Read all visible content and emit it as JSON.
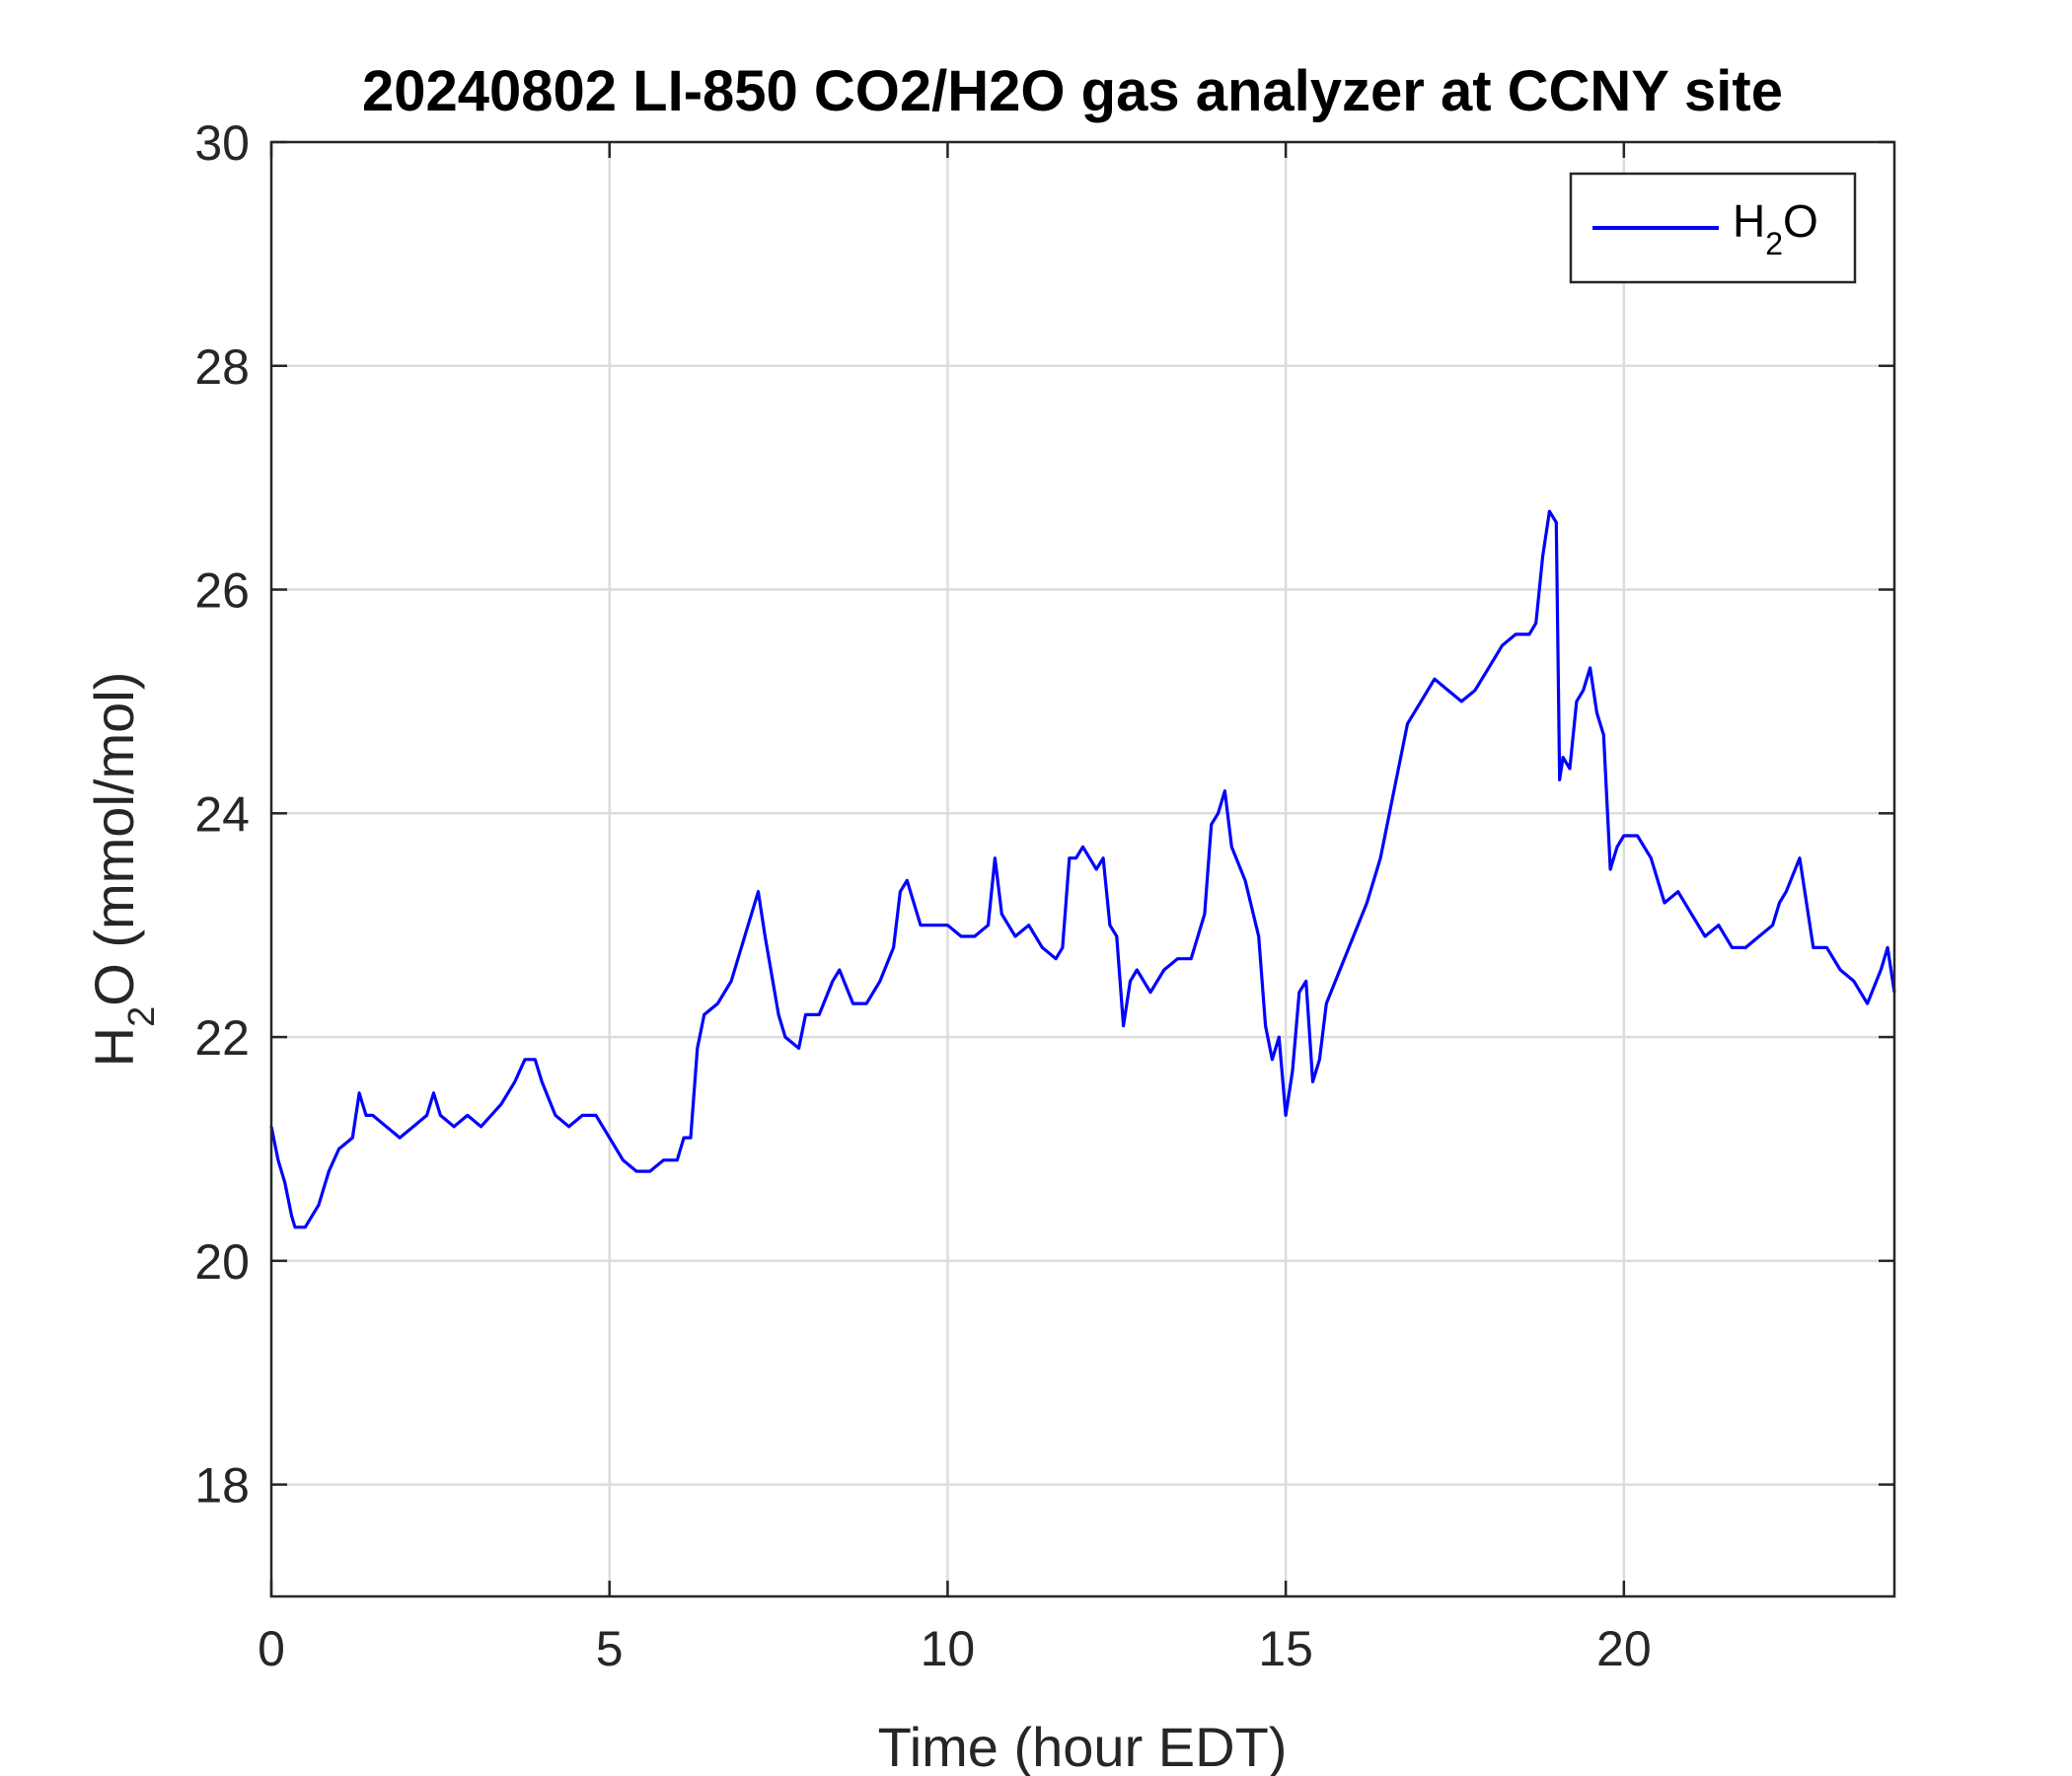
{
  "chart_data": {
    "type": "line",
    "title": "20240802 LI-850 CO2/H2O gas analyzer at CCNY site",
    "xlabel": "Time (hour EDT)",
    "ylabel": {
      "main": "H",
      "sub": "2",
      "rest": "O (mmol/mol)"
    },
    "xlim": [
      0,
      24
    ],
    "ylim": [
      17,
      30
    ],
    "xticks": [
      0,
      5,
      10,
      15,
      20
    ],
    "xtick_labels": [
      "0",
      "5",
      "10",
      "15",
      "20"
    ],
    "yticks": [
      18,
      20,
      22,
      24,
      26,
      28,
      30
    ],
    "ytick_labels": [
      "18",
      "20",
      "22",
      "24",
      "26",
      "28",
      "30"
    ],
    "grid": true,
    "legend": {
      "position": "top-right",
      "entries": [
        {
          "main": "H",
          "sub": "2",
          "rest": "O"
        }
      ]
    },
    "series": [
      {
        "color": "#0000ff",
        "x": [
          0.0,
          0.1,
          0.2,
          0.3,
          0.35,
          0.5,
          0.7,
          0.85,
          1.0,
          1.2,
          1.3,
          1.4,
          1.5,
          1.7,
          1.9,
          2.1,
          2.3,
          2.4,
          2.5,
          2.7,
          2.9,
          3.1,
          3.25,
          3.4,
          3.6,
          3.75,
          3.9,
          4.0,
          4.2,
          4.4,
          4.6,
          4.8,
          5.0,
          5.2,
          5.4,
          5.6,
          5.8,
          6.0,
          6.1,
          6.2,
          6.3,
          6.4,
          6.6,
          6.8,
          7.0,
          7.2,
          7.3,
          7.5,
          7.6,
          7.8,
          7.9,
          8.1,
          8.3,
          8.4,
          8.6,
          8.8,
          9.0,
          9.2,
          9.3,
          9.4,
          9.6,
          9.8,
          10.0,
          10.2,
          10.4,
          10.6,
          10.7,
          10.8,
          11.0,
          11.2,
          11.4,
          11.6,
          11.7,
          11.8,
          11.9,
          12.0,
          12.2,
          12.3,
          12.4,
          12.5,
          12.6,
          12.7,
          12.8,
          13.0,
          13.2,
          13.4,
          13.6,
          13.8,
          13.9,
          14.0,
          14.1,
          14.2,
          14.4,
          14.6,
          14.7,
          14.8,
          14.9,
          15.0,
          15.1,
          15.2,
          15.3,
          15.4,
          15.5,
          15.6,
          15.8,
          16.0,
          16.2,
          16.4,
          16.6,
          16.8,
          17.0,
          17.2,
          17.4,
          17.6,
          17.8,
          18.0,
          18.2,
          18.4,
          18.6,
          18.7,
          18.8,
          18.9,
          19.0,
          19.05,
          19.1,
          19.2,
          19.3,
          19.4,
          19.5,
          19.6,
          19.7,
          19.8,
          19.9,
          20.0,
          20.2,
          20.4,
          20.6,
          20.8,
          21.0,
          21.2,
          21.4,
          21.6,
          21.8,
          22.0,
          22.2,
          22.3,
          22.4,
          22.6,
          22.8,
          23.0,
          23.2,
          23.4,
          23.5,
          23.6,
          23.8,
          23.9,
          24.0
        ],
        "y": [
          21.2,
          20.9,
          20.7,
          20.4,
          20.3,
          20.3,
          20.5,
          20.8,
          21.0,
          21.1,
          21.5,
          21.3,
          21.3,
          21.2,
          21.1,
          21.2,
          21.3,
          21.5,
          21.3,
          21.2,
          21.3,
          21.2,
          21.3,
          21.4,
          21.6,
          21.8,
          21.8,
          21.6,
          21.3,
          21.2,
          21.3,
          21.3,
          21.1,
          20.9,
          20.8,
          20.8,
          20.9,
          20.9,
          21.1,
          21.1,
          21.9,
          22.2,
          22.3,
          22.5,
          22.9,
          23.3,
          22.9,
          22.2,
          22.0,
          21.9,
          22.2,
          22.2,
          22.5,
          22.6,
          22.3,
          22.3,
          22.5,
          22.8,
          23.3,
          23.4,
          23.0,
          23.0,
          23.0,
          22.9,
          22.9,
          23.0,
          23.6,
          23.1,
          22.9,
          23.0,
          22.8,
          22.7,
          22.8,
          23.6,
          23.6,
          23.7,
          23.5,
          23.6,
          23.0,
          22.9,
          22.1,
          22.5,
          22.6,
          22.4,
          22.6,
          22.7,
          22.7,
          23.1,
          23.9,
          24.0,
          24.2,
          23.7,
          23.4,
          22.9,
          22.1,
          21.8,
          22.0,
          21.3,
          21.7,
          22.4,
          22.5,
          21.6,
          21.8,
          22.3,
          22.6,
          22.9,
          23.2,
          23.6,
          24.2,
          24.8,
          25.0,
          25.2,
          25.1,
          25.0,
          25.1,
          25.3,
          25.5,
          25.6,
          25.6,
          25.7,
          26.3,
          26.7,
          26.6,
          24.3,
          24.5,
          24.4,
          25.0,
          25.1,
          25.3,
          24.9,
          24.7,
          23.5,
          23.7,
          23.8,
          23.8,
          23.6,
          23.2,
          23.3,
          23.1,
          22.9,
          23.0,
          22.8,
          22.8,
          22.9,
          23.0,
          23.2,
          23.3,
          23.6,
          22.8,
          22.8,
          22.6,
          22.5,
          22.4,
          22.3,
          22.6,
          22.8,
          22.4
        ]
      }
    ]
  }
}
